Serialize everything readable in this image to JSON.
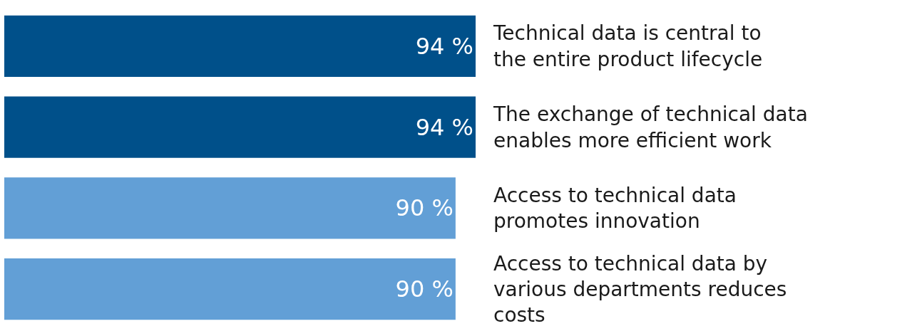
{
  "chart_data": {
    "type": "bar",
    "orientation": "horizontal",
    "categories": [
      "Technical data is central to the entire product lifecycle",
      "The exchange of technical data enables more efficient work",
      "Access to technical data promotes innovation",
      "Access to technical data by various departments reduces costs"
    ],
    "values": [
      94,
      94,
      90,
      90
    ],
    "value_labels": [
      "94 %",
      "94 %",
      "90 %",
      "90 %"
    ],
    "colors": [
      "#00508a",
      "#00508a",
      "#629fd6",
      "#629fd6"
    ]
  }
}
